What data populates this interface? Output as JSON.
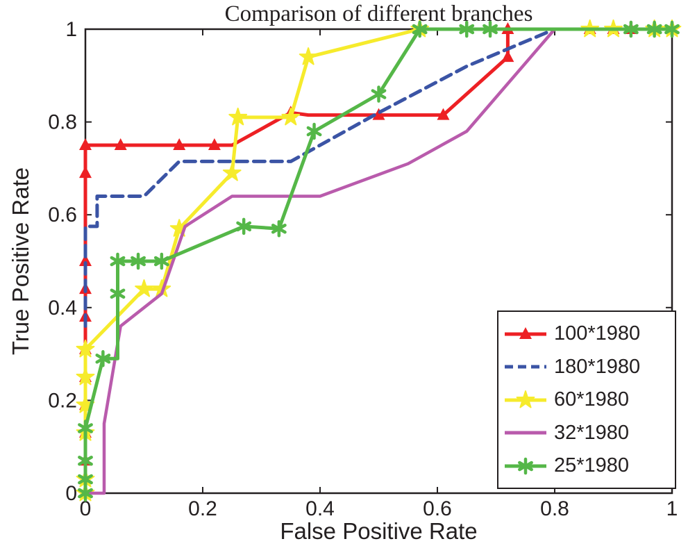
{
  "figure": {
    "background": "#ffffff",
    "axis_color": "#231f20"
  },
  "chart_data": {
    "type": "line",
    "title": "Comparison of different branches",
    "xlabel": "False Positive Rate",
    "ylabel": "True Positive Rate",
    "xlim": [
      0,
      1
    ],
    "ylim": [
      0,
      1
    ],
    "xticks": [
      0,
      0.2,
      0.4,
      0.6,
      0.8,
      1
    ],
    "yticks": [
      0,
      0.2,
      0.4,
      0.6,
      0.8,
      1
    ],
    "xtick_labels": [
      "0",
      "0.2",
      "0.4",
      "0.6",
      "0.8",
      "1"
    ],
    "ytick_labels": [
      "0",
      "0.2",
      "0.4",
      "0.6",
      "0.8",
      "1"
    ],
    "grid": false,
    "legend_position": "lower right",
    "axis_color": "#231f20",
    "series": [
      {
        "name": "100*1980",
        "color": "#ed2024",
        "line_style": "solid",
        "marker": "triangle",
        "width": 5,
        "points": [
          [
            0,
            0
          ],
          [
            0,
            0.75
          ],
          [
            0.25,
            0.75
          ],
          [
            0.35,
            0.82
          ],
          [
            0.38,
            0.815
          ],
          [
            0.61,
            0.815
          ],
          [
            0.72,
            0.94
          ],
          [
            0.72,
            1
          ],
          [
            1,
            1
          ]
        ],
        "marker_points": [
          [
            0,
            0
          ],
          [
            0,
            0.07
          ],
          [
            0,
            0.13
          ],
          [
            0,
            0.19
          ],
          [
            0,
            0.25
          ],
          [
            0,
            0.31
          ],
          [
            0,
            0.38
          ],
          [
            0,
            0.44
          ],
          [
            0,
            0.5
          ],
          [
            0,
            0.69
          ],
          [
            0,
            0.75
          ],
          [
            0.06,
            0.75
          ],
          [
            0.16,
            0.75
          ],
          [
            0.22,
            0.75
          ],
          [
            0.35,
            0.82
          ],
          [
            0.5,
            0.815
          ],
          [
            0.61,
            0.815
          ],
          [
            0.72,
            0.94
          ],
          [
            0.72,
            1
          ],
          [
            0.86,
            1
          ],
          [
            0.9,
            1
          ],
          [
            0.93,
            1
          ],
          [
            0.97,
            1
          ],
          [
            1,
            1
          ]
        ]
      },
      {
        "name": "180*1980",
        "color": "#3b54a5",
        "line_style": "dashed",
        "marker": "none",
        "width": 5,
        "points": [
          [
            0,
            0.36
          ],
          [
            0,
            0.575
          ],
          [
            0.02,
            0.575
          ],
          [
            0.02,
            0.64
          ],
          [
            0.1,
            0.64
          ],
          [
            0.16,
            0.715
          ],
          [
            0.35,
            0.715
          ],
          [
            0.5,
            0.82
          ],
          [
            0.65,
            0.92
          ],
          [
            0.8,
            1
          ],
          [
            1,
            1
          ]
        ],
        "marker_points": []
      },
      {
        "name": "60*1980",
        "color": "#f6eb2c",
        "line_style": "solid",
        "marker": "star5",
        "width": 5,
        "points": [
          [
            0,
            0
          ],
          [
            0,
            0.31
          ],
          [
            0.1,
            0.44
          ],
          [
            0.13,
            0.44
          ],
          [
            0.16,
            0.57
          ],
          [
            0.25,
            0.69
          ],
          [
            0.26,
            0.81
          ],
          [
            0.35,
            0.81
          ],
          [
            0.38,
            0.94
          ],
          [
            0.57,
            1
          ],
          [
            1,
            1
          ]
        ],
        "marker_points": [
          [
            0,
            0
          ],
          [
            0,
            0.03
          ],
          [
            0,
            0.13
          ],
          [
            0,
            0.19
          ],
          [
            0,
            0.25
          ],
          [
            0,
            0.31
          ],
          [
            0.1,
            0.44
          ],
          [
            0.13,
            0.44
          ],
          [
            0.16,
            0.57
          ],
          [
            0.25,
            0.69
          ],
          [
            0.26,
            0.81
          ],
          [
            0.35,
            0.81
          ],
          [
            0.38,
            0.94
          ],
          [
            0.57,
            1
          ],
          [
            0.86,
            1
          ],
          [
            0.9,
            1
          ],
          [
            0.97,
            1
          ],
          [
            1,
            1
          ]
        ]
      },
      {
        "name": "32*1980",
        "color": "#b95bac",
        "line_style": "solid",
        "marker": "none",
        "width": 4.5,
        "points": [
          [
            0,
            0
          ],
          [
            0.032,
            0
          ],
          [
            0.032,
            0.15
          ],
          [
            0.06,
            0.36
          ],
          [
            0.13,
            0.43
          ],
          [
            0.17,
            0.575
          ],
          [
            0.25,
            0.64
          ],
          [
            0.4,
            0.64
          ],
          [
            0.55,
            0.71
          ],
          [
            0.65,
            0.78
          ],
          [
            0.8,
            1
          ],
          [
            1,
            1
          ]
        ],
        "marker_points": []
      },
      {
        "name": "25*1980",
        "color": "#55b748",
        "line_style": "solid",
        "marker": "star6",
        "width": 5,
        "points": [
          [
            0,
            0
          ],
          [
            0,
            0.14
          ],
          [
            0.03,
            0.29
          ],
          [
            0.055,
            0.29
          ],
          [
            0.055,
            0.5
          ],
          [
            0.13,
            0.5
          ],
          [
            0.27,
            0.575
          ],
          [
            0.33,
            0.57
          ],
          [
            0.39,
            0.78
          ],
          [
            0.5,
            0.86
          ],
          [
            0.57,
            1
          ],
          [
            1,
            1
          ]
        ],
        "marker_points": [
          [
            0,
            0
          ],
          [
            0,
            0.03
          ],
          [
            0,
            0.07
          ],
          [
            0,
            0.14
          ],
          [
            0.03,
            0.29
          ],
          [
            0.055,
            0.43
          ],
          [
            0.055,
            0.5
          ],
          [
            0.09,
            0.5
          ],
          [
            0.13,
            0.5
          ],
          [
            0.27,
            0.575
          ],
          [
            0.33,
            0.57
          ],
          [
            0.39,
            0.78
          ],
          [
            0.5,
            0.86
          ],
          [
            0.57,
            1
          ],
          [
            0.65,
            1
          ],
          [
            0.69,
            1
          ],
          [
            0.93,
            1
          ],
          [
            0.97,
            1
          ],
          [
            1,
            1
          ]
        ]
      }
    ]
  }
}
